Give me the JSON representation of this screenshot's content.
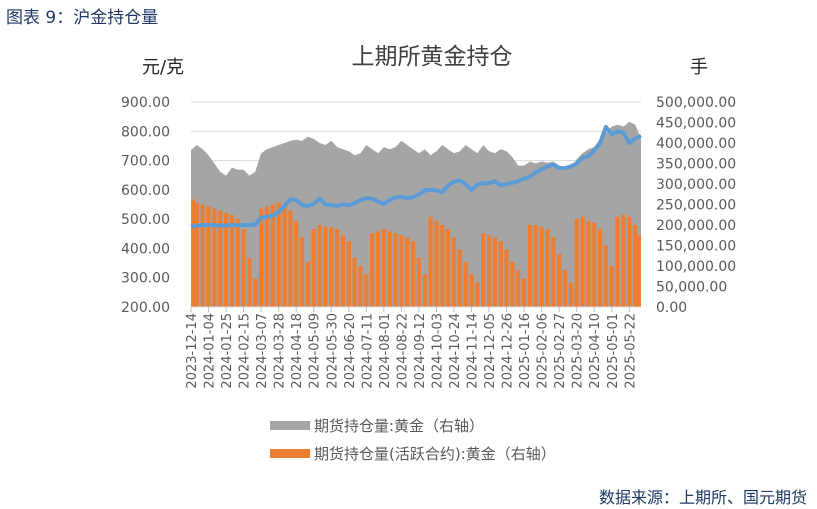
{
  "header": {
    "figure_label": "图表 9：沪金持仓量"
  },
  "footer": {
    "source": "数据来源：上期所、国元期货"
  },
  "chart_data": {
    "type": "bar+area+line",
    "title": "上期所黄金持仓",
    "ylabel_left": "元/克",
    "ylabel_right": "手",
    "ylim_left": [
      200,
      900
    ],
    "ylim_right": [
      0,
      500000
    ],
    "yticks_left": [
      "200.00",
      "300.00",
      "400.00",
      "500.00",
      "600.00",
      "700.00",
      "800.00",
      "900.00"
    ],
    "yticks_right": [
      "0.00",
      "50,000.00",
      "100,000.00",
      "150,000.00",
      "200,000.00",
      "250,000.00",
      "300,000.00",
      "350,000.00",
      "400,000.00",
      "450,000.00",
      "500,000.00"
    ],
    "grid": true,
    "legend_position": "bottom",
    "x_tick_labels": [
      "2023-12-14",
      "2024-01-04",
      "2024-01-25",
      "2024-02-15",
      "2024-03-07",
      "2024-03-28",
      "2024-04-18",
      "2024-05-09",
      "2024-05-30",
      "2024-06-20",
      "2024-07-11",
      "2024-08-01",
      "2024-08-22",
      "2024-09-12",
      "2024-10-03",
      "2024-10-24",
      "2024-11-14",
      "2024-12-05",
      "2024-12-26",
      "2025-01-16",
      "2025-02-06",
      "2025-02-27",
      "2025-03-20",
      "2025-04-10",
      "2025-05-01",
      "2025-05-22"
    ],
    "x_frequency": "weekly",
    "series": [
      {
        "name": "期货持仓量:黄金（右轴）",
        "type": "area",
        "axis": "right",
        "color": "#a5a5a5",
        "unit": "thousand",
        "values": [
          383,
          395,
          385,
          370,
          350,
          330,
          320,
          340,
          335,
          335,
          320,
          330,
          375,
          385,
          390,
          395,
          400,
          405,
          408,
          405,
          415,
          410,
          400,
          395,
          405,
          390,
          385,
          380,
          370,
          375,
          395,
          385,
          375,
          390,
          385,
          390,
          405,
          395,
          385,
          375,
          385,
          370,
          380,
          395,
          385,
          375,
          380,
          395,
          385,
          375,
          395,
          380,
          375,
          385,
          380,
          365,
          345,
          345,
          355,
          350,
          355,
          352,
          355,
          345,
          335,
          340,
          360,
          375,
          385,
          390,
          410,
          425,
          440,
          445,
          440,
          452,
          445,
          410
        ]
      },
      {
        "name": "期货持仓量(活跃合约):黄金（右轴）",
        "type": "bar",
        "axis": "right",
        "color": "#ed7d31",
        "unit": "thousand",
        "values": [
          262,
          255,
          250,
          245,
          240,
          235,
          230,
          225,
          215,
          190,
          120,
          70,
          240,
          245,
          250,
          255,
          250,
          235,
          210,
          170,
          110,
          190,
          200,
          196,
          195,
          190,
          175,
          160,
          120,
          100,
          80,
          180,
          185,
          190,
          185,
          180,
          175,
          170,
          160,
          120,
          80,
          220,
          210,
          200,
          190,
          170,
          140,
          110,
          80,
          60,
          180,
          175,
          170,
          160,
          140,
          110,
          90,
          70,
          200,
          200,
          195,
          190,
          170,
          130,
          90,
          60,
          215,
          220,
          210,
          205,
          190,
          150,
          100,
          220,
          225,
          220,
          200,
          175
        ]
      },
      {
        "type": "line",
        "axis": "left",
        "color": "#5b9bd5",
        "values": [
          474,
          478,
          480,
          480,
          479,
          478,
          478,
          480,
          479,
          480,
          480,
          482,
          505,
          508,
          512,
          525,
          545,
          568,
          565,
          548,
          545,
          552,
          570,
          550,
          548,
          545,
          550,
          548,
          555,
          565,
          572,
          570,
          560,
          552,
          565,
          575,
          576,
          572,
          575,
          585,
          598,
          600,
          598,
          592,
          615,
          628,
          632,
          620,
          600,
          618,
          622,
          622,
          630,
          615,
          620,
          624,
          630,
          638,
          645,
          660,
          670,
          680,
          686,
          675,
          674,
          680,
          690,
          710,
          715,
          735,
          760,
          815,
          790,
          800,
          795,
          760,
          775,
          785
        ]
      }
    ]
  }
}
